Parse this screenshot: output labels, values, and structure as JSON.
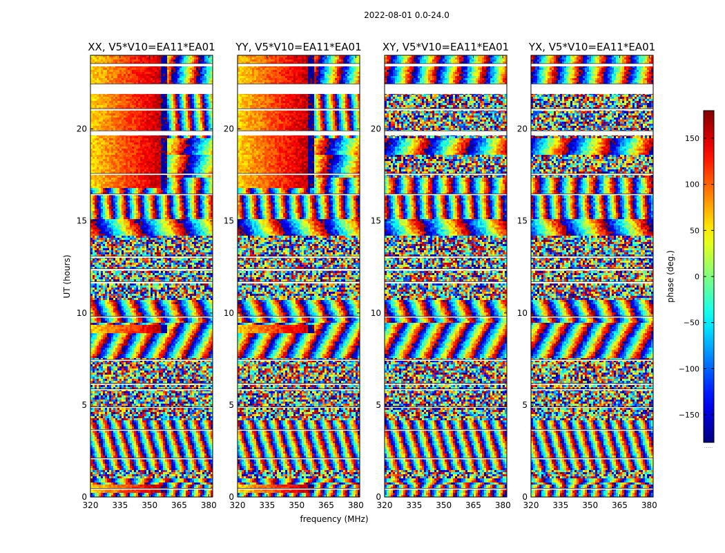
{
  "chart_data": {
    "type": "heatmap",
    "title": "2022-08-01 0.0-24.0",
    "xlabel": "frequency (MHz)",
    "ylabel": "UT (hours)",
    "xlim": [
      320,
      382
    ],
    "ylim": [
      0,
      24
    ],
    "xticks": [
      "320",
      "335",
      "350",
      "365",
      "380"
    ],
    "xtick_values": [
      320,
      335,
      350,
      365,
      380
    ],
    "yticks": [
      "0",
      "5",
      "10",
      "15",
      "20"
    ],
    "ytick_values": [
      0,
      5,
      10,
      15,
      20
    ],
    "panels": [
      {
        "title": "XX, V5*V10=EA11*EA01",
        "polarization": "XX"
      },
      {
        "title": "YY, V5*V10=EA11*EA01",
        "polarization": "YY"
      },
      {
        "title": "XY, V5*V10=EA11*EA01",
        "polarization": "XY"
      },
      {
        "title": "YX, V5*V10=EA11*EA01",
        "polarization": "YX"
      }
    ],
    "colorbar": {
      "label": "phase (deg.)",
      "range": [
        -180,
        180
      ],
      "ticks": [
        "150",
        "100",
        "50",
        "0",
        "−50",
        "−100",
        "−150"
      ],
      "tick_values": [
        150,
        100,
        50,
        0,
        -50,
        -100,
        -150
      ],
      "colormap": "jet",
      "bottom_note": "....."
    },
    "flagged_gaps_hours": [
      [
        23.4,
        23.55
      ],
      [
        21.9,
        22.45
      ],
      [
        21.0,
        21.1
      ],
      [
        19.65,
        19.9
      ],
      [
        17.5,
        17.58
      ],
      [
        16.4,
        16.47
      ],
      [
        13.0,
        13.08
      ],
      [
        12.3,
        12.4
      ],
      [
        11.6,
        11.7
      ],
      [
        9.75,
        9.82
      ],
      [
        7.4,
        7.47
      ],
      [
        6.1,
        6.17
      ],
      [
        5.8,
        5.87
      ],
      [
        4.85,
        4.9
      ],
      [
        3.6,
        3.67
      ],
      [
        2.05,
        2.12
      ],
      [
        0.4,
        0.47
      ]
    ]
  }
}
